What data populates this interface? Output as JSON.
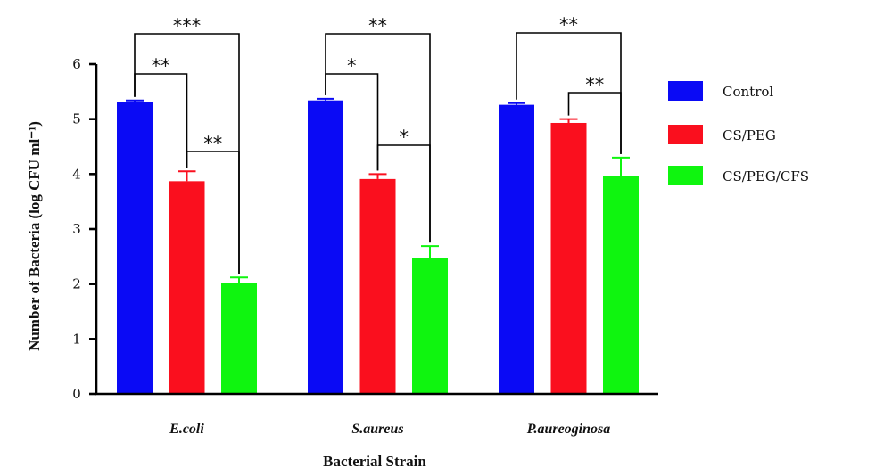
{
  "chart_data": {
    "type": "bar",
    "xlabel": "Bacterial Strain",
    "ylabel": "Number of Bacteria (log CFU ml⁻¹)",
    "ylim": [
      0,
      6
    ],
    "yticks": [
      "0",
      "1",
      "2",
      "3",
      "4",
      "5",
      "6"
    ],
    "categories": [
      "E.coli",
      "S.aureus",
      "P.aureoginosa"
    ],
    "series": [
      {
        "name": "Control",
        "color": "#0a0af5",
        "values": [
          5.31,
          5.34,
          5.26
        ],
        "errors": [
          0.03,
          0.03,
          0.03
        ]
      },
      {
        "name": "CS/PEG",
        "color": "#fa0f1e",
        "values": [
          3.87,
          3.91,
          4.93
        ],
        "errors": [
          0.18,
          0.09,
          0.07
        ]
      },
      {
        "name": "CS/PEG/CFS",
        "color": "#0ff50f",
        "values": [
          2.02,
          2.48,
          3.97
        ],
        "errors": [
          0.1,
          0.21,
          0.33
        ]
      }
    ],
    "legend_position": "right",
    "significance": [
      {
        "category": 0,
        "from": 0,
        "to": 2,
        "label": "***"
      },
      {
        "category": 0,
        "from": 0,
        "to": 1,
        "label": "**"
      },
      {
        "category": 0,
        "from": 1,
        "to": 2,
        "label": "**"
      },
      {
        "category": 1,
        "from": 0,
        "to": 2,
        "label": "**"
      },
      {
        "category": 1,
        "from": 0,
        "to": 1,
        "label": "*"
      },
      {
        "category": 1,
        "from": 1,
        "to": 2,
        "label": "*"
      },
      {
        "category": 2,
        "from": 0,
        "to": 2,
        "label": "**"
      },
      {
        "category": 2,
        "from": 1,
        "to": 2,
        "label": "**"
      }
    ]
  }
}
